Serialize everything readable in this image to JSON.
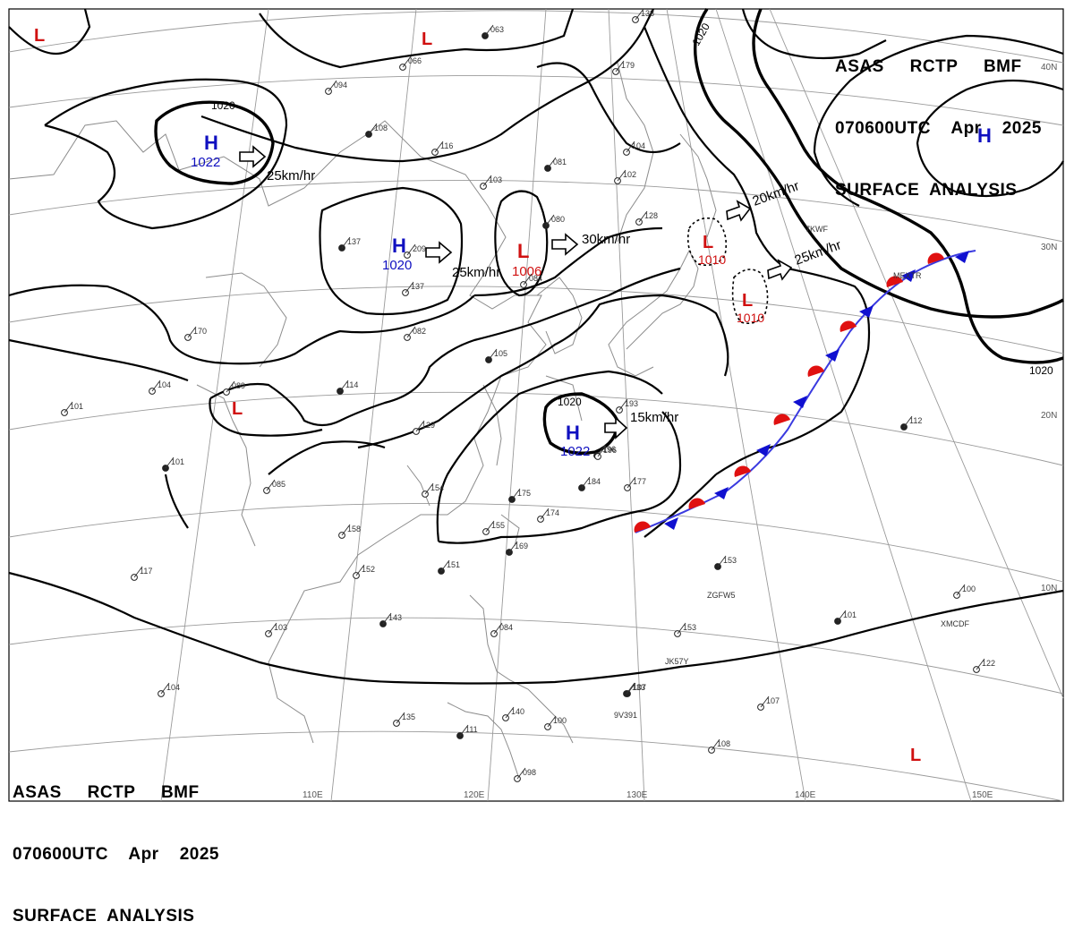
{
  "header": {
    "top_right": [
      "ASAS     RCTP     BMF",
      "070600UTC    Apr    2025",
      "SURFACE  ANALYSIS"
    ],
    "bottom_left": [
      "ASAS     RCTP     BMF",
      "070600UTC    Apr    2025",
      "SURFACE  ANALYSIS"
    ]
  },
  "grid_labels": {
    "longitudes": [
      "110E",
      "120E",
      "130E",
      "140E",
      "150E"
    ],
    "latitudes": [
      "40N",
      "30N",
      "20N",
      "10N"
    ]
  },
  "pressure_centers": [
    {
      "type": "H",
      "value": "1022",
      "color": "#1010c0"
    },
    {
      "type": "H",
      "value": "1020",
      "color": "#1010c0"
    },
    {
      "type": "H",
      "value": "1022",
      "color": "#1010c0"
    },
    {
      "type": "H",
      "value": "",
      "color": "#1010c0"
    },
    {
      "type": "L",
      "value": "1006",
      "color": "#d01010"
    },
    {
      "type": "L",
      "value": "1010",
      "color": "#d01010"
    },
    {
      "type": "L",
      "value": "1010",
      "color": "#d01010"
    },
    {
      "type": "L",
      "value": "",
      "color": "#d01010"
    },
    {
      "type": "L",
      "value": "",
      "color": "#d01010"
    },
    {
      "type": "L",
      "value": "",
      "color": "#d01010"
    },
    {
      "type": "L",
      "value": "",
      "color": "#d01010"
    }
  ],
  "isobar_labels": [
    "1020",
    "1020",
    "1020",
    "1020"
  ],
  "motion_vectors": [
    "25km/hr",
    "25km/hr",
    "30km/hr",
    "20km/hr",
    "25km/hr",
    "15km/hr"
  ],
  "station_labels": [
    "063",
    "066",
    "094",
    "108",
    "116",
    "103",
    "081",
    "102",
    "104",
    "137",
    "209",
    "137",
    "080",
    "084",
    "128",
    "196",
    "170",
    "082",
    "105",
    "104",
    "089",
    "114",
    "129",
    "101",
    "101",
    "085",
    "154",
    "175",
    "174",
    "155",
    "169",
    "158",
    "152",
    "151",
    "117",
    "103",
    "143",
    "104",
    "135",
    "111",
    "140",
    "100",
    "107",
    "098",
    "084",
    "153",
    "193",
    "196",
    "184",
    "177",
    "153",
    "133",
    "107",
    "108",
    "101",
    "122",
    "100",
    "112",
    "138",
    "179",
    "157"
  ],
  "station_ids": [
    "ZGFW5",
    "JK57Y",
    "9V391",
    "XMCDF",
    "MEXTR",
    "7KWF"
  ],
  "colors": {
    "high": "#1010c0",
    "low": "#d01010",
    "warm_front": "#e01010",
    "cold_front": "#1010d0"
  }
}
